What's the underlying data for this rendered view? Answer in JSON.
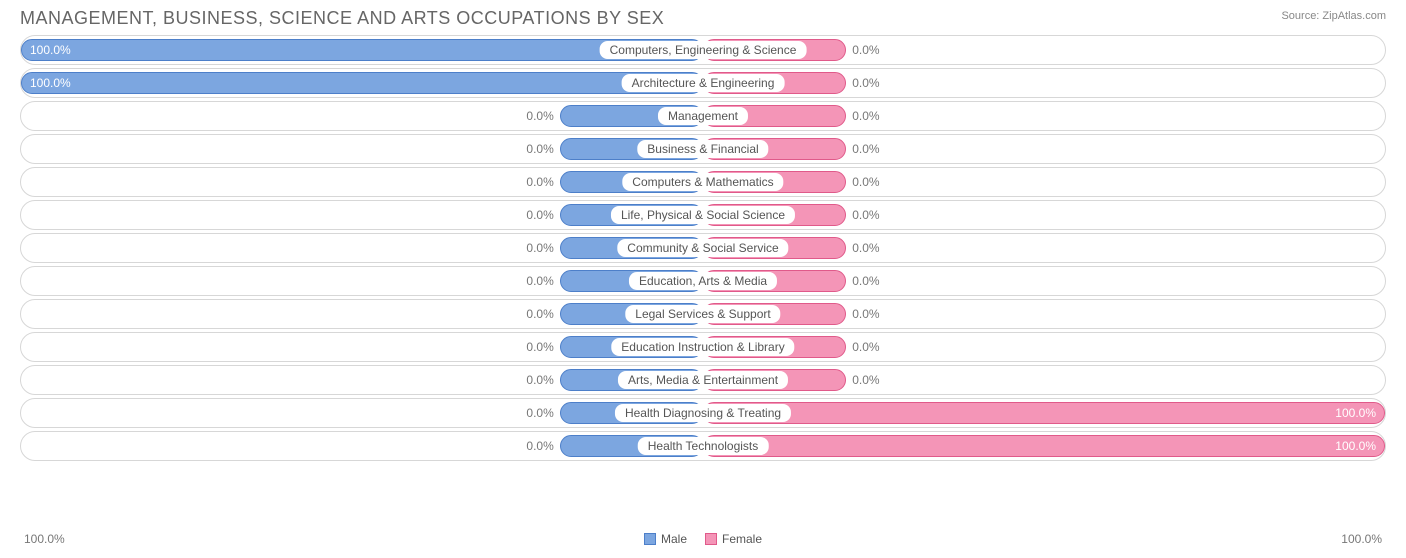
{
  "chart": {
    "title": "MANAGEMENT, BUSINESS, SCIENCE AND ARTS OCCUPATIONS BY SEX",
    "source_label": "Source: ZipAtlas.com",
    "type": "diverging-bar",
    "background_color": "#ffffff",
    "track_border_color": "#d7d7d7",
    "track_border_radius": 15,
    "title_color": "#666666",
    "title_fontsize": 18,
    "label_fontsize": 12,
    "label_color": "#555555",
    "value_fontsize": 12,
    "value_color_inside": "#ffffff",
    "value_color_outside": "#777777",
    "male_fill": "#7ca6e0",
    "male_stroke": "#4d7fc9",
    "female_fill": "#f495b7",
    "female_stroke": "#e05a8a",
    "min_bar_width_pct": 21,
    "axis_left": "100.0%",
    "axis_right": "100.0%",
    "legend": {
      "male": "Male",
      "female": "Female"
    },
    "rows": [
      {
        "label": "Computers, Engineering & Science",
        "male": 100.0,
        "female": 0.0
      },
      {
        "label": "Architecture & Engineering",
        "male": 100.0,
        "female": 0.0
      },
      {
        "label": "Management",
        "male": 0.0,
        "female": 0.0
      },
      {
        "label": "Business & Financial",
        "male": 0.0,
        "female": 0.0
      },
      {
        "label": "Computers & Mathematics",
        "male": 0.0,
        "female": 0.0
      },
      {
        "label": "Life, Physical & Social Science",
        "male": 0.0,
        "female": 0.0
      },
      {
        "label": "Community & Social Service",
        "male": 0.0,
        "female": 0.0
      },
      {
        "label": "Education, Arts & Media",
        "male": 0.0,
        "female": 0.0
      },
      {
        "label": "Legal Services & Support",
        "male": 0.0,
        "female": 0.0
      },
      {
        "label": "Education Instruction & Library",
        "male": 0.0,
        "female": 0.0
      },
      {
        "label": "Arts, Media & Entertainment",
        "male": 0.0,
        "female": 0.0
      },
      {
        "label": "Health Diagnosing & Treating",
        "male": 0.0,
        "female": 100.0
      },
      {
        "label": "Health Technologists",
        "male": 0.0,
        "female": 100.0
      }
    ]
  }
}
